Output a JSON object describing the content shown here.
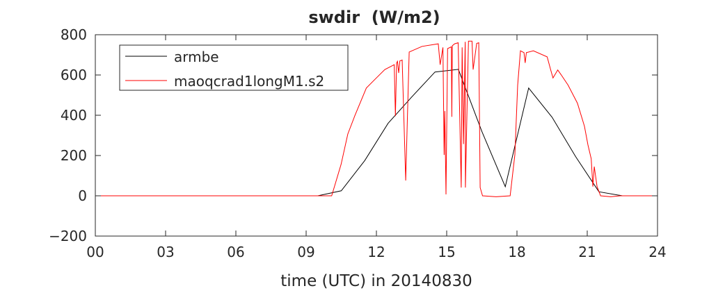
{
  "chart_data": {
    "type": "line",
    "title": "swdir  (W/m2)",
    "xlabel": "time (UTC) in 20140830",
    "ylabel": "",
    "xlim": [
      0,
      24
    ],
    "ylim": [
      -200,
      800
    ],
    "xticks": [
      0,
      3,
      6,
      9,
      12,
      15,
      18,
      21,
      24
    ],
    "xtick_labels": [
      "00",
      "03",
      "06",
      "09",
      "12",
      "15",
      "18",
      "21",
      "24"
    ],
    "yticks": [
      -200,
      0,
      200,
      400,
      600,
      800
    ],
    "ytick_labels": [
      "−200",
      "0",
      "200",
      "400",
      "600",
      "800"
    ],
    "grid": false,
    "legend_position": "top-left",
    "series": [
      {
        "name": "armbe",
        "color": "#000000",
        "x": [
          0,
          9.5,
          10.5,
          11.5,
          12.5,
          13.5,
          14.5,
          15.5,
          16.5,
          17.5,
          18.5,
          19.5,
          20.5,
          21.5,
          22.5,
          24
        ],
        "y": [
          0,
          0,
          25,
          175,
          360,
          490,
          615,
          628,
          320,
          45,
          535,
          390,
          195,
          20,
          0,
          0
        ]
      },
      {
        "name": "maoqcrad1longM1.s2",
        "color": "#ff0000",
        "x": [
          0,
          10.09,
          10.49,
          10.78,
          11.08,
          11.57,
          11.97,
          12.36,
          12.76,
          12.81,
          12.86,
          12.9,
          12.95,
          13.0,
          13.1,
          13.25,
          13.4,
          13.95,
          14.64,
          14.72,
          14.84,
          14.89,
          14.92,
          14.97,
          15.04,
          15.2,
          15.22,
          15.24,
          15.34,
          15.49,
          15.62,
          15.66,
          15.72,
          15.79,
          15.8,
          15.93,
          16.08,
          16.13,
          16.28,
          16.37,
          16.43,
          16.53,
          17.11,
          17.71,
          17.91,
          18.03,
          18.15,
          18.3,
          18.35,
          18.4,
          18.7,
          19.29,
          19.44,
          19.54,
          19.74,
          19.88,
          20.18,
          20.58,
          20.88,
          21.03,
          21.17,
          21.24,
          21.3,
          21.42,
          21.57,
          22.0,
          22.4,
          24
        ],
        "y": [
          0,
          0,
          156,
          307,
          398,
          535,
          582,
          627,
          651,
          396,
          660,
          668,
          610,
          670,
          674,
          76,
          714,
          742,
          755,
          651,
          737,
          203,
          421,
          7,
          731,
          740,
          392,
          745,
          755,
          760,
          41,
          737,
          257,
          765,
          41,
          768,
          768,
          627,
          757,
          760,
          41,
          0,
          -5,
          0,
          204,
          549,
          720,
          711,
          660,
          711,
          720,
          690,
          625,
          585,
          625,
          602,
          550,
          460,
          345,
          253,
          184,
          46,
          145,
          46,
          0,
          -5,
          0,
          0
        ]
      }
    ]
  }
}
